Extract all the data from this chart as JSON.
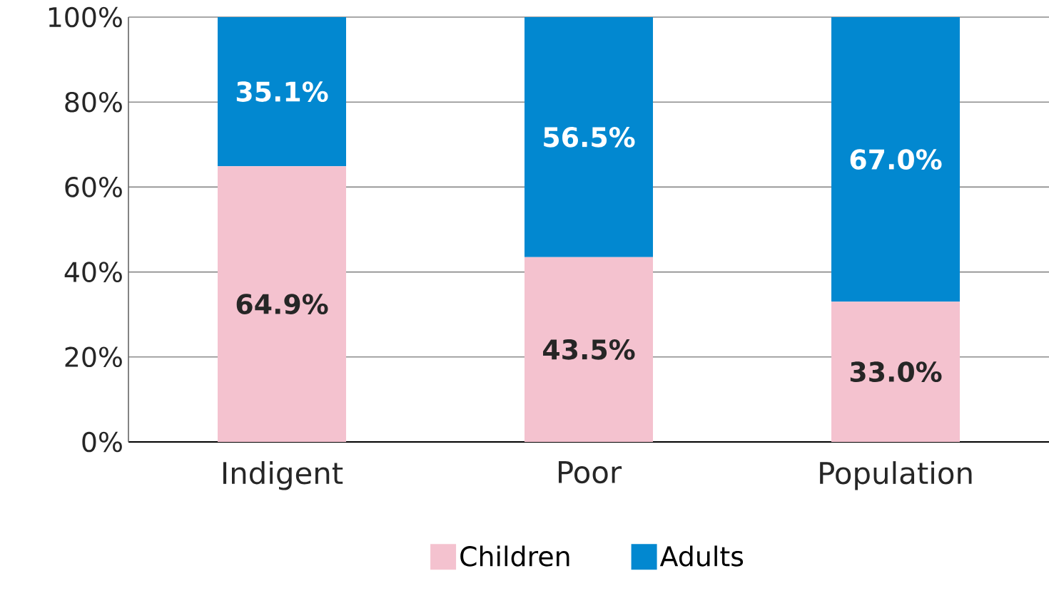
{
  "chart_data": {
    "type": "bar",
    "stacked": true,
    "categories": [
      "Indigent",
      "Poor",
      "Population"
    ],
    "series": [
      {
        "name": "Children",
        "color": "#f4c2cf",
        "values": [
          64.9,
          43.5,
          33.0
        ],
        "value_labels": [
          "64.9%",
          "43.5%",
          "33.0%"
        ]
      },
      {
        "name": "Adults",
        "color": "#0288d0",
        "values": [
          35.1,
          56.5,
          67.0
        ],
        "value_labels": [
          "35.1%",
          "56.5%",
          "67.0%"
        ]
      }
    ],
    "ylim": [
      0,
      100
    ],
    "yticks": [
      {
        "value": 0,
        "label": "0%"
      },
      {
        "value": 20,
        "label": "20%"
      },
      {
        "value": 40,
        "label": "40%"
      },
      {
        "value": 60,
        "label": "60%"
      },
      {
        "value": 80,
        "label": "80%"
      },
      {
        "value": 100,
        "label": "100%"
      }
    ],
    "grid": "y",
    "legend": "bottom"
  }
}
